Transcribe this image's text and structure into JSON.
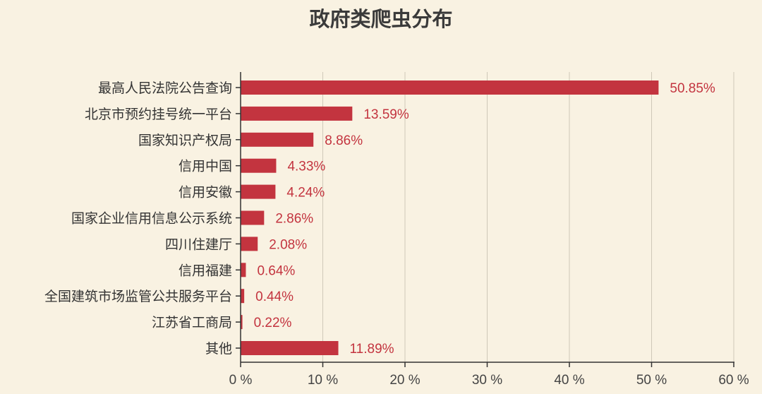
{
  "chart_data": {
    "type": "bar",
    "orientation": "horizontal",
    "title": "政府类爬虫分布",
    "categories": [
      "最高人民法院公告查询",
      "北京市预约挂号统一平台",
      "国家知识产权局",
      "信用中国",
      "信用安徽",
      "国家企业信用信息公示系统",
      "四川住建厅",
      "信用福建",
      "全国建筑市场监管公共服务平台",
      "江苏省工商局",
      "其他"
    ],
    "values": [
      50.85,
      13.59,
      8.86,
      4.33,
      4.24,
      2.86,
      2.08,
      0.64,
      0.44,
      0.22,
      11.89
    ],
    "data_labels": [
      "50.85%",
      "13.59%",
      "8.86%",
      "4.33%",
      "4.24%",
      "2.86%",
      "2.08%",
      "0.64%",
      "0.44%",
      "0.22%",
      "11.89%"
    ],
    "xlim": [
      0,
      60
    ],
    "xticks": [
      "0 %",
      "10 %",
      "20 %",
      "30 %",
      "40 %",
      "50 %",
      "60 %"
    ],
    "grid": "vertical",
    "bar_color": "#c3343f",
    "label_color": "#c3343f",
    "background": "#f9f2e2"
  }
}
